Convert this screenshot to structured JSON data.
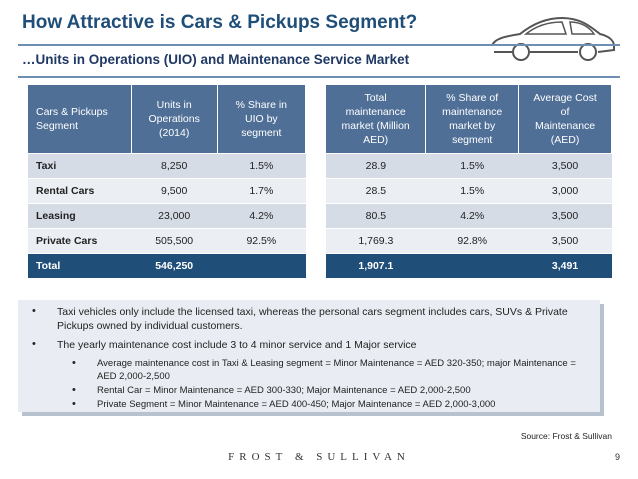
{
  "header": {
    "title": "How Attractive is Cars & Pickups Segment?",
    "subtitle": "…Units in Operations (UIO) and Maintenance Service Market"
  },
  "uio_table": {
    "headers": [
      "Cars & Pickups\nSegment",
      "Units in\nOperations\n(2014)",
      "% Share in\nUIO by\nsegment"
    ],
    "rows": [
      {
        "segment": "Taxi",
        "units": "8,250",
        "share": "1.5%"
      },
      {
        "segment": "Rental Cars",
        "units": "9,500",
        "share": "1.7%"
      },
      {
        "segment": "Leasing",
        "units": "23,000",
        "share": "4.2%"
      },
      {
        "segment": "Private Cars",
        "units": "505,500",
        "share": "92.5%"
      }
    ],
    "total": {
      "segment": "Total",
      "units": "546,250",
      "share": ""
    }
  },
  "market_table": {
    "headers": [
      "Total\nmaintenance\nmarket (Million\nAED)",
      "% Share of\nmaintenance\nmarket by\nsegment",
      "Average Cost\nof\nMaintenance\n(AED)"
    ],
    "rows": [
      {
        "market": "28.9",
        "share": "1.5%",
        "cost": "3,500"
      },
      {
        "market": "28.5",
        "share": "1.5%",
        "cost": "3,000"
      },
      {
        "market": "80.5",
        "share": "4.2%",
        "cost": "3,500"
      },
      {
        "market": "1,769.3",
        "share": "92.8%",
        "cost": "3,500"
      }
    ],
    "total": {
      "market": "1,907.1",
      "share": "",
      "cost": "3,491"
    }
  },
  "notes": {
    "bullets": [
      "Taxi vehicles only include the licensed taxi, whereas the personal cars segment includes cars, SUVs & Private Pickups owned by individual customers.",
      "The yearly maintenance cost include 3 to 4 minor service and 1 Major service"
    ],
    "sub_bullets": [
      "Average maintenance cost in Taxi & Leasing segment = Minor Maintenance = AED 320-350; major Maintenance = AED 2,000-2,500",
      "Rental Car = Minor Maintenance = AED 300-330; Major Maintenance = AED 2,000-2,500",
      "Private Segment = Minor Maintenance = AED 400-450; Major Maintenance = AED 2,000-3,000"
    ]
  },
  "source": "Source: Frost & Sullivan",
  "footer": {
    "brand": "FROST & SULLIVAN",
    "page": "9"
  },
  "icons": {
    "logo": "car-outline-icon",
    "bullet": "bullet-dot-icon"
  },
  "colors": {
    "header_blue": "#4f6f97",
    "total_navy": "#1f4e79",
    "title_blue": "#1f4e79"
  }
}
